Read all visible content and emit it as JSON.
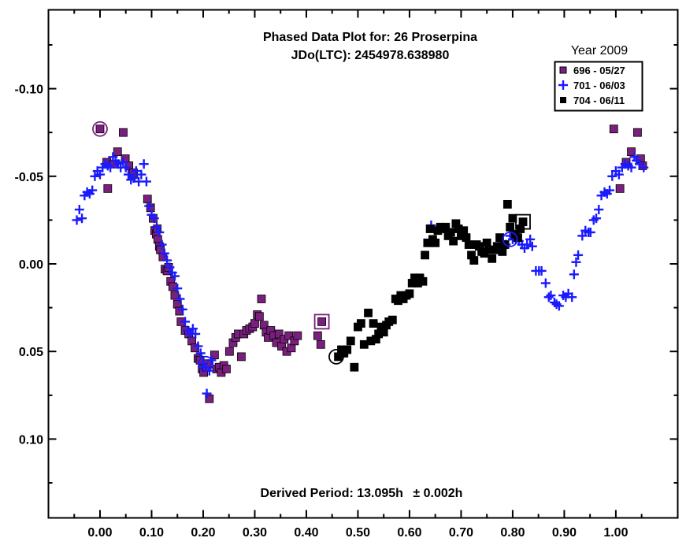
{
  "chart_data": {
    "type": "scatter",
    "title": "Phased Data Plot for: 26 Proserpina",
    "subtitle": "JDo(LTC): 2454978.638980",
    "footer_prefix": "Derived Period: 13.095h",
    "footer_error": "± 0.002h",
    "legend_title": "Year 2009",
    "xlim": [
      -0.1,
      1.12
    ],
    "ylim": [
      -0.145,
      0.145
    ],
    "y_inverted": true,
    "x_ticks": [
      "0.00",
      "0.10",
      "0.20",
      "0.30",
      "0.40",
      "0.50",
      "0.60",
      "0.70",
      "0.80",
      "0.90",
      "1.00"
    ],
    "y_ticks": [
      "-0.10",
      "-0.05",
      "0.00",
      "0.05",
      "0.10"
    ],
    "colors": {
      "s696": "#7b1f7f",
      "s701": "#1a1aff",
      "s704": "#000000"
    },
    "series": [
      {
        "name": "696 - 05/27",
        "marker": "square",
        "color": "#7b1f7f",
        "points": [
          [
            0.0,
            -0.077
          ],
          [
            0.013,
            -0.058
          ],
          [
            0.015,
            -0.043
          ],
          [
            0.026,
            -0.057
          ],
          [
            0.034,
            -0.064
          ],
          [
            0.045,
            -0.075
          ],
          [
            0.049,
            -0.06
          ],
          [
            0.056,
            -0.056
          ],
          [
            0.065,
            -0.052
          ],
          [
            0.092,
            -0.037
          ],
          [
            0.098,
            -0.032
          ],
          [
            0.103,
            -0.026
          ],
          [
            0.106,
            -0.019
          ],
          [
            0.109,
            -0.017
          ],
          [
            0.111,
            -0.02
          ],
          [
            0.112,
            -0.014
          ],
          [
            0.115,
            -0.01
          ],
          [
            0.117,
            -0.008
          ],
          [
            0.122,
            -0.004
          ],
          [
            0.126,
            0.003
          ],
          [
            0.13,
            0.004
          ],
          [
            0.133,
            0.002
          ],
          [
            0.137,
            0.01
          ],
          [
            0.141,
            0.013
          ],
          [
            0.145,
            0.018
          ],
          [
            0.15,
            0.023
          ],
          [
            0.154,
            0.027
          ],
          [
            0.157,
            0.033
          ],
          [
            0.165,
            0.038
          ],
          [
            0.172,
            0.04
          ],
          [
            0.178,
            0.044
          ],
          [
            0.184,
            0.048
          ],
          [
            0.19,
            0.054
          ],
          [
            0.194,
            0.055
          ],
          [
            0.198,
            0.06
          ],
          [
            0.201,
            0.062
          ],
          [
            0.206,
            0.059
          ],
          [
            0.208,
            0.057
          ],
          [
            0.212,
            0.077
          ],
          [
            0.222,
            0.052
          ],
          [
            0.226,
            0.06
          ],
          [
            0.231,
            0.059
          ],
          [
            0.235,
            0.062
          ],
          [
            0.24,
            0.058
          ],
          [
            0.245,
            0.06
          ],
          [
            0.251,
            0.05
          ],
          [
            0.258,
            0.045
          ],
          [
            0.263,
            0.042
          ],
          [
            0.268,
            0.04
          ],
          [
            0.274,
            0.053
          ],
          [
            0.279,
            0.04
          ],
          [
            0.284,
            0.038
          ],
          [
            0.29,
            0.037
          ],
          [
            0.296,
            0.036
          ],
          [
            0.3,
            0.034
          ],
          [
            0.305,
            0.029
          ],
          [
            0.309,
            0.03
          ],
          [
            0.313,
            0.02
          ],
          [
            0.318,
            0.035
          ],
          [
            0.322,
            0.039
          ],
          [
            0.326,
            0.042
          ],
          [
            0.331,
            0.038
          ],
          [
            0.337,
            0.041
          ],
          [
            0.342,
            0.045
          ],
          [
            0.347,
            0.04
          ],
          [
            0.352,
            0.047
          ],
          [
            0.357,
            0.043
          ],
          [
            0.362,
            0.05
          ],
          [
            0.366,
            0.041
          ],
          [
            0.371,
            0.048
          ],
          [
            0.377,
            0.044
          ],
          [
            0.383,
            0.041
          ],
          [
            0.422,
            0.041
          ],
          [
            0.428,
            0.046
          ],
          [
            0.43,
            0.033
          ],
          [
            0.996,
            -0.077
          ],
          [
            1.008,
            -0.043
          ],
          [
            1.02,
            -0.058
          ],
          [
            1.03,
            -0.064
          ],
          [
            1.042,
            -0.075
          ],
          [
            1.048,
            -0.06
          ],
          [
            1.052,
            -0.056
          ]
        ]
      },
      {
        "name": "701 - 06/03",
        "marker": "plus",
        "color": "#1a1aff",
        "points": [
          [
            -0.045,
            -0.025
          ],
          [
            -0.04,
            -0.031
          ],
          [
            -0.035,
            -0.026
          ],
          [
            -0.03,
            -0.039
          ],
          [
            -0.025,
            -0.041
          ],
          [
            -0.02,
            -0.04
          ],
          [
            -0.015,
            -0.042
          ],
          [
            -0.01,
            -0.05
          ],
          [
            -0.005,
            -0.053
          ],
          [
            0.0,
            -0.051
          ],
          [
            0.005,
            -0.055
          ],
          [
            0.01,
            -0.057
          ],
          [
            0.015,
            -0.056
          ],
          [
            0.02,
            -0.055
          ],
          [
            0.025,
            -0.061
          ],
          [
            0.03,
            -0.059
          ],
          [
            0.035,
            -0.057
          ],
          [
            0.04,
            -0.055
          ],
          [
            0.045,
            -0.058
          ],
          [
            0.05,
            -0.055
          ],
          [
            0.055,
            -0.051
          ],
          [
            0.06,
            -0.048
          ],
          [
            0.065,
            -0.049
          ],
          [
            0.07,
            -0.053
          ],
          [
            0.075,
            -0.047
          ],
          [
            0.08,
            -0.051
          ],
          [
            0.085,
            -0.057
          ],
          [
            0.09,
            -0.047
          ],
          [
            0.095,
            -0.033
          ],
          [
            0.1,
            -0.028
          ],
          [
            0.105,
            -0.026
          ],
          [
            0.11,
            -0.021
          ],
          [
            0.115,
            -0.018
          ],
          [
            0.12,
            -0.011
          ],
          [
            0.125,
            -0.006
          ],
          [
            0.13,
            -0.002
          ],
          [
            0.135,
            0.002
          ],
          [
            0.14,
            0.005
          ],
          [
            0.145,
            0.007
          ],
          [
            0.15,
            0.014
          ],
          [
            0.155,
            0.02
          ],
          [
            0.16,
            0.026
          ],
          [
            0.165,
            0.033
          ],
          [
            0.17,
            0.038
          ],
          [
            0.175,
            0.04
          ],
          [
            0.18,
            0.037
          ],
          [
            0.185,
            0.04
          ],
          [
            0.19,
            0.047
          ],
          [
            0.195,
            0.051
          ],
          [
            0.2,
            0.057
          ],
          [
            0.205,
            0.059
          ],
          [
            0.207,
            0.074
          ],
          [
            0.212,
            0.061
          ],
          [
            0.216,
            0.055
          ],
          [
            0.642,
            -0.022
          ],
          [
            0.78,
            -0.013
          ],
          [
            0.787,
            -0.011
          ],
          [
            0.795,
            -0.016
          ],
          [
            0.8,
            -0.014
          ],
          [
            0.806,
            -0.014
          ],
          [
            0.812,
            -0.013
          ],
          [
            0.818,
            -0.011
          ],
          [
            0.823,
            -0.009
          ],
          [
            0.828,
            -0.011
          ],
          [
            0.834,
            -0.014
          ],
          [
            0.838,
            -0.01
          ],
          [
            0.845,
            0.004
          ],
          [
            0.851,
            0.004
          ],
          [
            0.856,
            0.004
          ],
          [
            0.864,
            0.011
          ],
          [
            0.87,
            0.019
          ],
          [
            0.874,
            0.018
          ],
          [
            0.881,
            0.022
          ],
          [
            0.885,
            0.023
          ],
          [
            0.89,
            0.024
          ],
          [
            0.898,
            0.018
          ],
          [
            0.903,
            0.019
          ],
          [
            0.908,
            0.017
          ],
          [
            0.915,
            0.019
          ],
          [
            0.919,
            0.006
          ],
          [
            0.923,
            -0.001
          ],
          [
            0.927,
            -0.005
          ],
          [
            0.935,
            -0.016
          ],
          [
            0.941,
            -0.019
          ],
          [
            0.947,
            -0.018
          ],
          [
            0.951,
            -0.018
          ],
          [
            0.957,
            -0.025
          ],
          [
            0.962,
            -0.026
          ],
          [
            0.967,
            -0.031
          ],
          [
            0.972,
            -0.039
          ],
          [
            0.978,
            -0.041
          ],
          [
            0.983,
            -0.04
          ],
          [
            0.988,
            -0.042
          ],
          [
            0.993,
            -0.05
          ],
          [
            1.0,
            -0.053
          ],
          [
            1.006,
            -0.051
          ],
          [
            1.012,
            -0.055
          ],
          [
            1.018,
            -0.057
          ],
          [
            1.024,
            -0.056
          ],
          [
            1.03,
            -0.055
          ],
          [
            1.036,
            -0.061
          ],
          [
            1.04,
            -0.059
          ],
          [
            1.046,
            -0.057
          ],
          [
            1.054,
            -0.055
          ]
        ]
      },
      {
        "name": "704 - 06/11",
        "marker": "square",
        "color": "#000000",
        "points": [
          [
            0.462,
            0.053
          ],
          [
            0.468,
            0.049
          ],
          [
            0.473,
            0.051
          ],
          [
            0.479,
            0.049
          ],
          [
            0.486,
            0.044
          ],
          [
            0.493,
            0.059
          ],
          [
            0.5,
            0.036
          ],
          [
            0.506,
            0.034
          ],
          [
            0.512,
            0.046
          ],
          [
            0.52,
            0.028
          ],
          [
            0.525,
            0.044
          ],
          [
            0.53,
            0.034
          ],
          [
            0.535,
            0.043
          ],
          [
            0.54,
            0.04
          ],
          [
            0.545,
            0.036
          ],
          [
            0.55,
            0.039
          ],
          [
            0.555,
            0.035
          ],
          [
            0.56,
            0.033
          ],
          [
            0.567,
            0.032
          ],
          [
            0.573,
            0.02
          ],
          [
            0.578,
            0.021
          ],
          [
            0.583,
            0.018
          ],
          [
            0.588,
            0.02
          ],
          [
            0.594,
            0.018
          ],
          [
            0.6,
            0.017
          ],
          [
            0.605,
            0.011
          ],
          [
            0.61,
            0.008
          ],
          [
            0.616,
            0.011
          ],
          [
            0.62,
            0.008
          ],
          [
            0.626,
            0.01
          ],
          [
            0.63,
            -0.005
          ],
          [
            0.635,
            -0.012
          ],
          [
            0.64,
            -0.02
          ],
          [
            0.645,
            -0.014
          ],
          [
            0.65,
            -0.012
          ],
          [
            0.655,
            -0.019
          ],
          [
            0.66,
            -0.021
          ],
          [
            0.665,
            -0.02
          ],
          [
            0.67,
            -0.021
          ],
          [
            0.675,
            -0.016
          ],
          [
            0.68,
            -0.018
          ],
          [
            0.685,
            -0.013
          ],
          [
            0.69,
            -0.023
          ],
          [
            0.695,
            -0.02
          ],
          [
            0.7,
            -0.016
          ],
          [
            0.705,
            -0.019
          ],
          [
            0.71,
            -0.015
          ],
          [
            0.715,
            -0.011
          ],
          [
            0.72,
            -0.005
          ],
          [
            0.725,
            -0.002
          ],
          [
            0.73,
            -0.011
          ],
          [
            0.735,
            -0.01
          ],
          [
            0.74,
            -0.007
          ],
          [
            0.745,
            -0.006
          ],
          [
            0.75,
            -0.012
          ],
          [
            0.755,
            -0.008
          ],
          [
            0.76,
            -0.003
          ],
          [
            0.765,
            -0.008
          ],
          [
            0.77,
            -0.01
          ],
          [
            0.775,
            -0.015
          ],
          [
            0.78,
            -0.007
          ],
          [
            0.785,
            -0.011
          ],
          [
            0.79,
            -0.034
          ],
          [
            0.795,
            -0.021
          ],
          [
            0.8,
            -0.026
          ],
          [
            0.805,
            -0.017
          ],
          [
            0.81,
            -0.015
          ],
          [
            0.815,
            -0.02
          ],
          [
            0.82,
            -0.024
          ]
        ]
      }
    ],
    "highlighted_points": [
      {
        "series": "696 - 05/27",
        "shape": "circle",
        "x": 0.0,
        "y": -0.077
      },
      {
        "series": "696 - 05/27",
        "shape": "square",
        "x": 0.43,
        "y": 0.033
      },
      {
        "series": "701 - 06/03",
        "shape": "circle",
        "x": 0.205,
        "y": 0.057
      },
      {
        "series": "701 - 06/03",
        "shape": "circle",
        "x": 0.795,
        "y": -0.014
      },
      {
        "series": "704 - 06/11",
        "shape": "circle",
        "x": 0.458,
        "y": 0.053
      },
      {
        "series": "704 - 06/11",
        "shape": "square",
        "x": 0.82,
        "y": -0.024
      }
    ]
  }
}
